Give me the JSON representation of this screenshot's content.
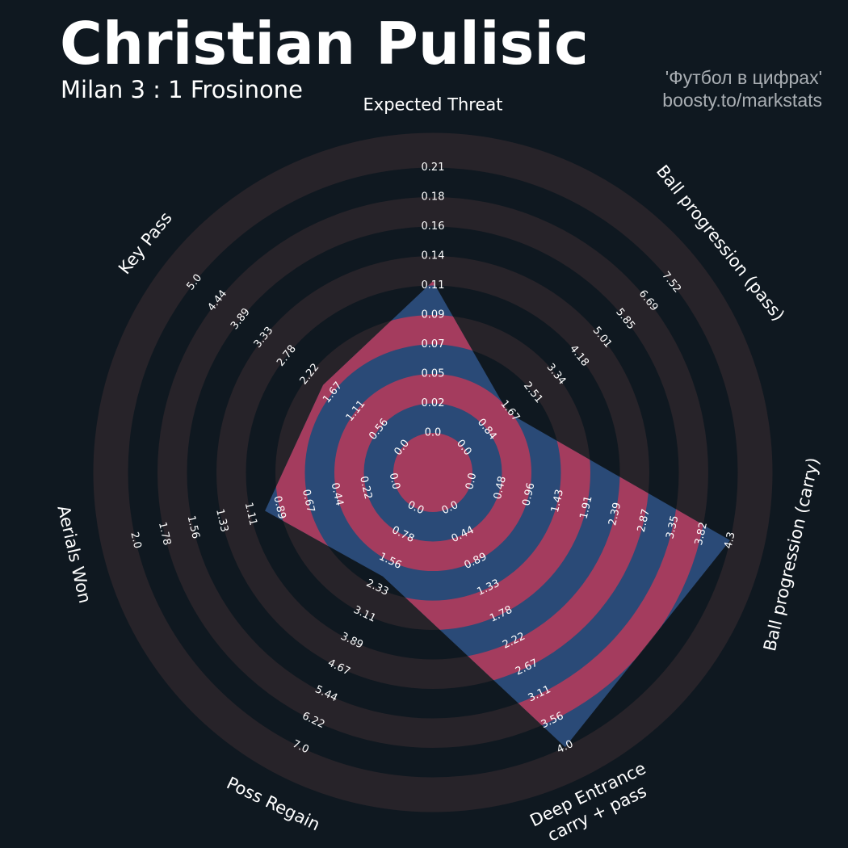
{
  "header": {
    "title": "Christian Pulisic",
    "subtitle": "Milan 3 : 1 Frosinone",
    "credit_line1": "'Футбол в цифрах'",
    "credit_line2": "boosty.to/markstats"
  },
  "colors": {
    "background": "#0f1820",
    "ring_band": "#272329",
    "polygon_blue": "#2a4a77",
    "polygon_red": "#a43c5e",
    "text": "#ffffff",
    "credit": "#a9aeb3"
  },
  "chart_data": {
    "type": "radar",
    "title": "Christian Pulisic",
    "subtitle": "Milan 3 : 1 Frosinone",
    "parameters": [
      {
        "label": "Expected Threat",
        "ticks": [
          "0.0",
          "0.02",
          "0.05",
          "0.07",
          "0.09",
          "0.11",
          "0.14",
          "0.16",
          "0.18",
          "0.21"
        ],
        "value": 0.12,
        "min": 0.0,
        "max": 0.21
      },
      {
        "label": "Ball progression (pass)",
        "ticks": [
          "0.0",
          "0.84",
          "1.67",
          "2.51",
          "3.34",
          "4.18",
          "5.01",
          "5.85",
          "6.69",
          "7.52"
        ],
        "value": 1.6,
        "min": 0.0,
        "max": 7.52
      },
      {
        "label": "Ball progression (carry)",
        "ticks": [
          "0.0",
          "0.48",
          "0.96",
          "1.43",
          "1.91",
          "2.39",
          "2.87",
          "3.35",
          "3.82",
          "4.3"
        ],
        "value": 4.3,
        "min": 0.0,
        "max": 4.3
      },
      {
        "label": "Deep Entrance\ncarry + pass",
        "ticks": [
          "0.0",
          "0.44",
          "0.89",
          "1.33",
          "1.78",
          "2.22",
          "2.67",
          "3.11",
          "3.56",
          "4.0"
        ],
        "value": 4.0,
        "min": 0.0,
        "max": 4.0
      },
      {
        "label": "Poss Regain",
        "ticks": [
          "0.0",
          "0.78",
          "1.56",
          "2.33",
          "3.11",
          "3.89",
          "4.67",
          "5.44",
          "6.22",
          "7.0"
        ],
        "value": 2.0,
        "min": 0.0,
        "max": 7.0
      },
      {
        "label": "Aerials Won",
        "ticks": [
          "0.0",
          "0.22",
          "0.44",
          "0.67",
          "0.89",
          "1.11",
          "1.33",
          "1.56",
          "1.78",
          "2.0"
        ],
        "value": 1.0,
        "min": 0.0,
        "max": 2.0
      },
      {
        "label": "Key Pass",
        "ticks": [
          "0.0",
          "0.56",
          "1.11",
          "1.67",
          "2.22",
          "2.78",
          "3.33",
          "3.89",
          "4.44",
          "5.0"
        ],
        "value": 1.9,
        "min": 0.0,
        "max": 5.0
      }
    ]
  }
}
